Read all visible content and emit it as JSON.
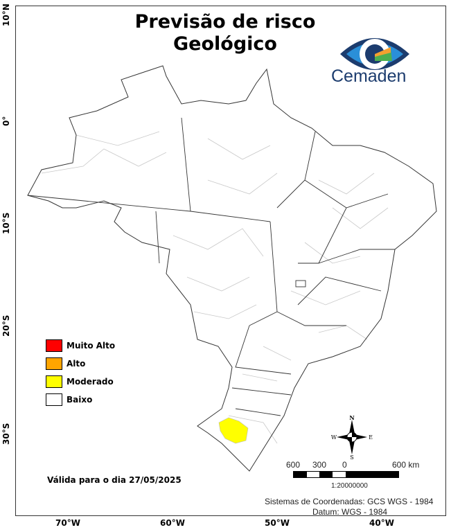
{
  "title": [
    "Previsão de risco",
    "Geológico"
  ],
  "logo": {
    "text": "Cemaden"
  },
  "latitude_labels": [
    "10°N",
    "0°",
    "10°S",
    "20°S",
    "30°S"
  ],
  "longitude_labels": [
    "70°W",
    "60°W",
    "50°W",
    "40°W"
  ],
  "legend": [
    {
      "label": "Muito Alto",
      "color": "#ff0000"
    },
    {
      "label": "Alto",
      "color": "#ffa500"
    },
    {
      "label": "Moderado",
      "color": "#ffff00"
    },
    {
      "label": "Baixo",
      "color": "#ffffff"
    }
  ],
  "validity": "Válida para o dia 27/05/2025",
  "compass": {
    "n": "N",
    "s": "S",
    "e": "E",
    "w": "W"
  },
  "scale": {
    "labels": [
      "600",
      "300",
      "0",
      "600 km"
    ],
    "ratio": "1:20000000"
  },
  "crs": {
    "line1": "Sistemas de Coordenadas: GCS WGS - 1984",
    "line2": "Datum: WGS - 1984"
  }
}
